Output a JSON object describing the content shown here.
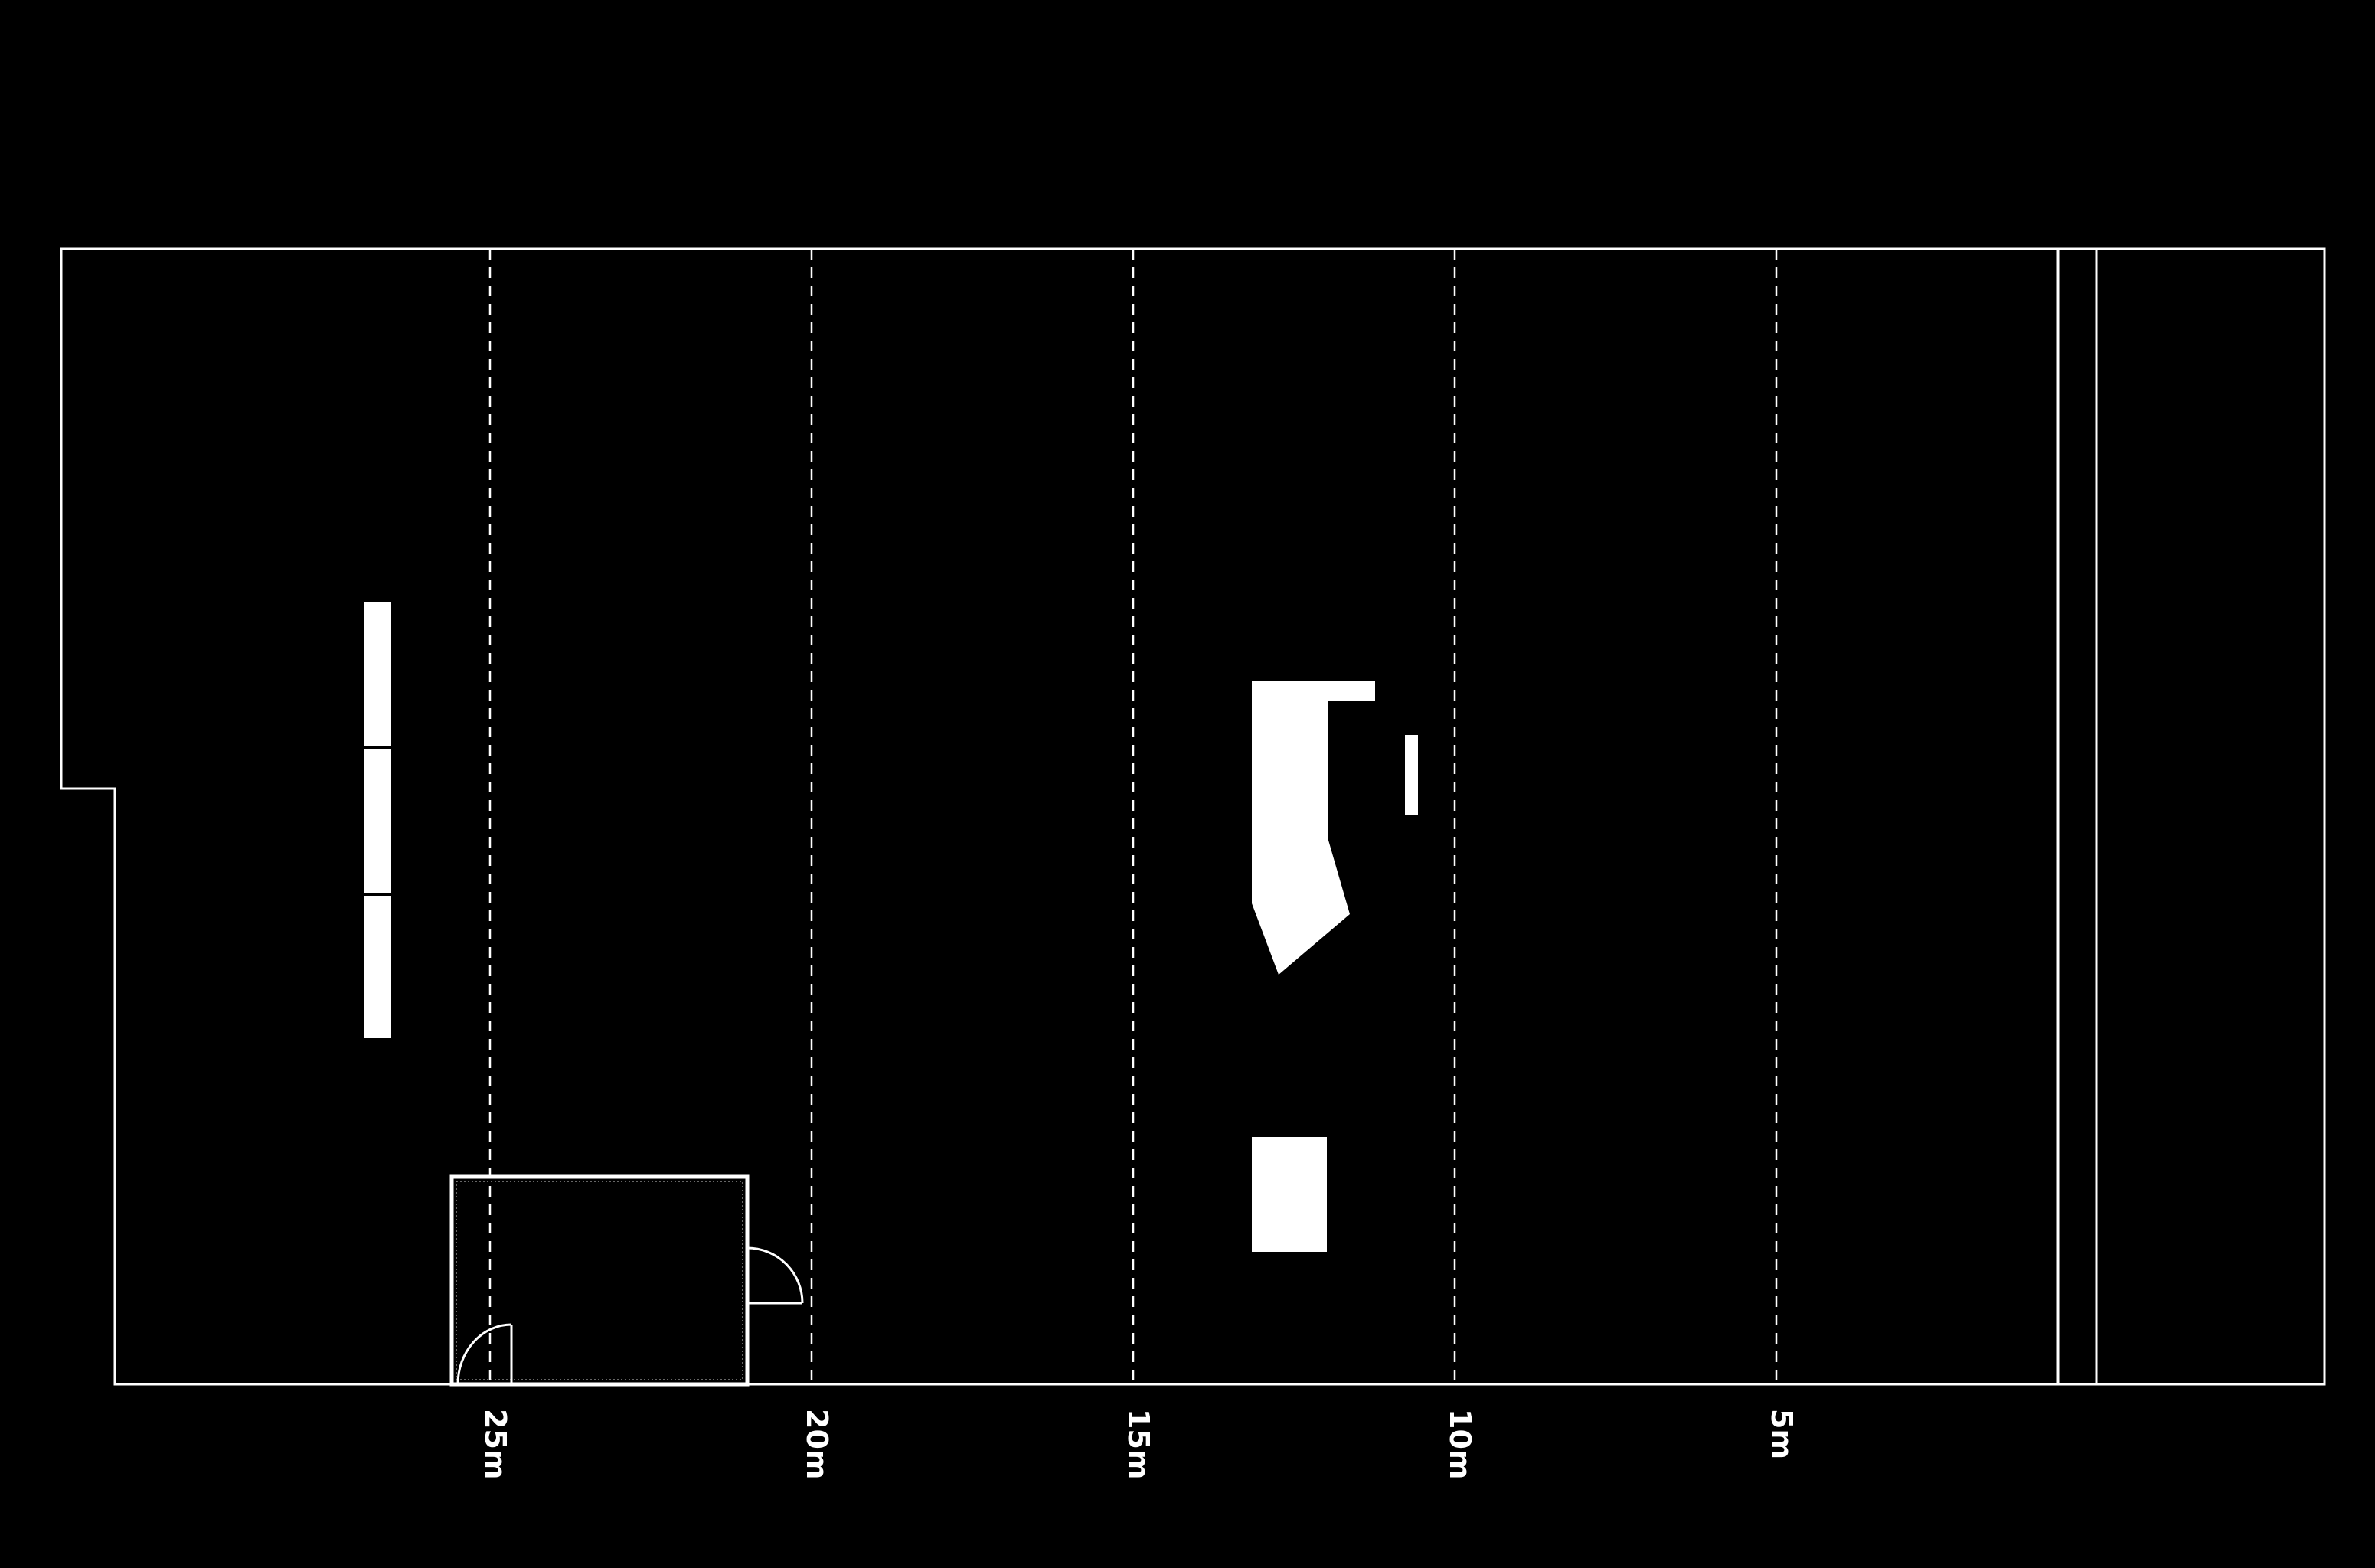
{
  "diagram": {
    "kind": "floor-plan",
    "background_color": "#000000",
    "line_color": "#ffffff",
    "distance_markers": [
      {
        "label": "25m",
        "meters": 25
      },
      {
        "label": "20m",
        "meters": 20
      },
      {
        "label": "15m",
        "meters": 15
      },
      {
        "label": "10m",
        "meters": 10
      },
      {
        "label": "5m",
        "meters": 5
      }
    ]
  }
}
